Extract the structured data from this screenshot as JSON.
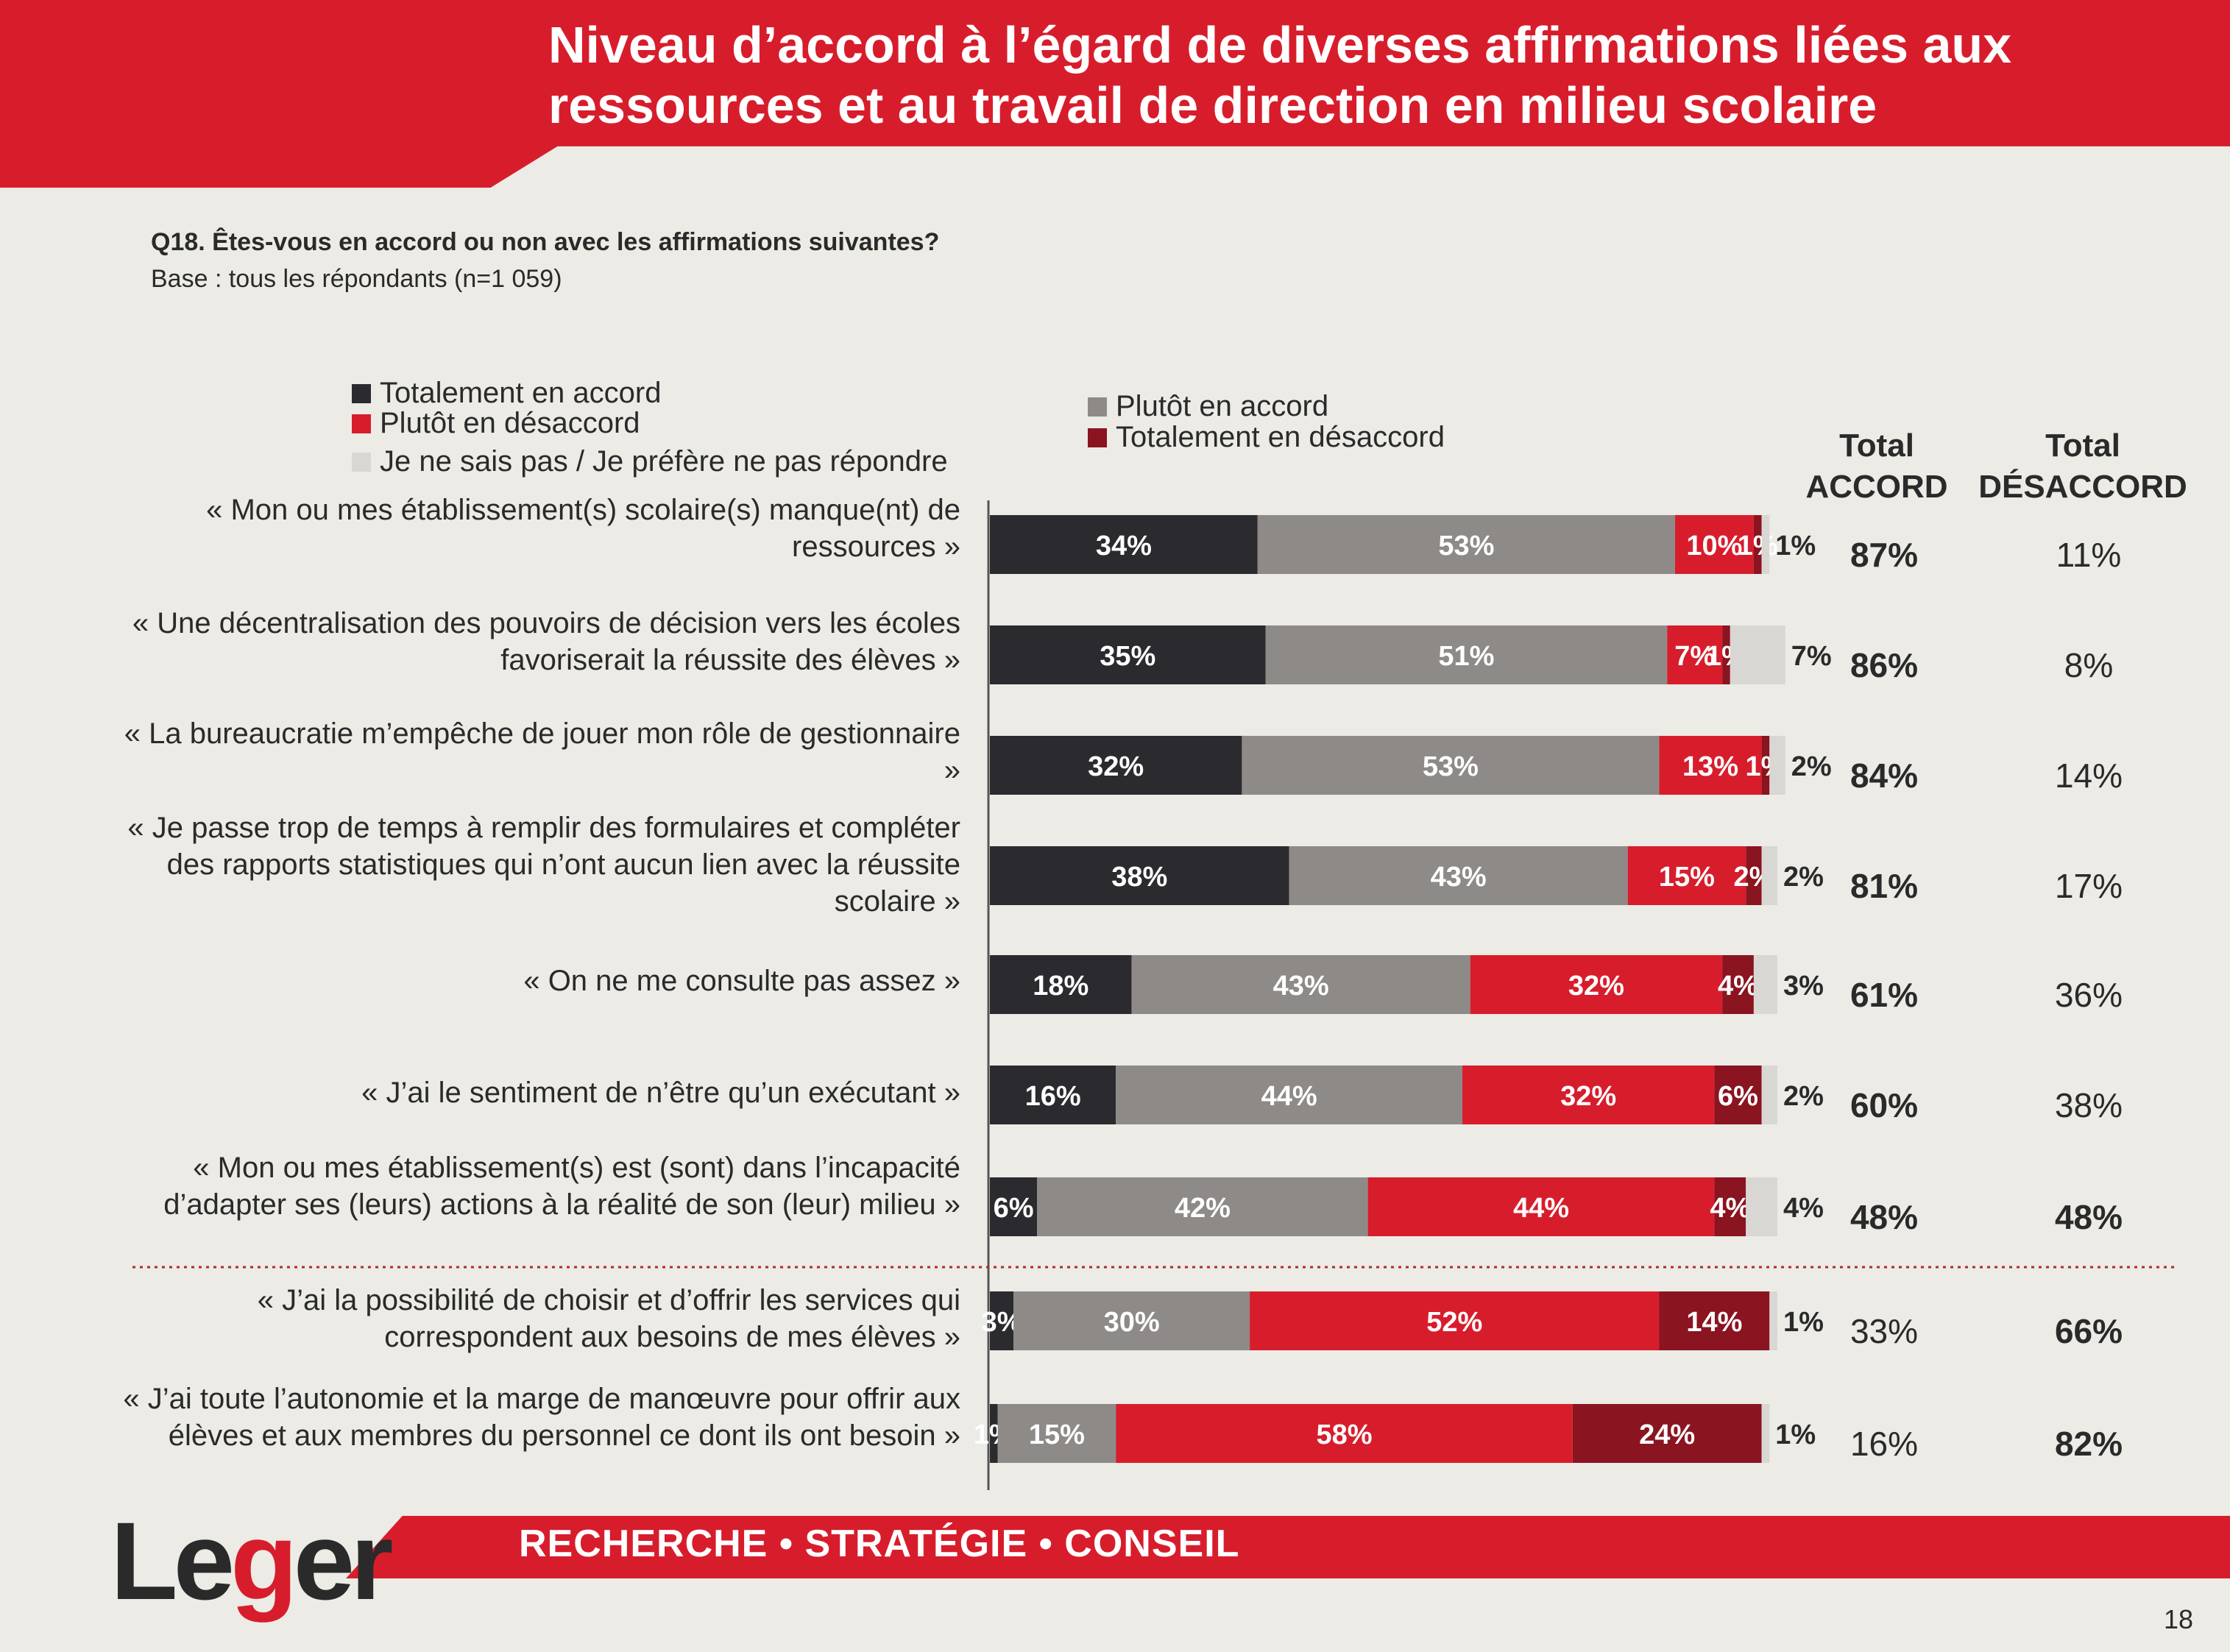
{
  "banner": {
    "title": "Niveau d’accord à l’égard de diverses affirmations liées aux ressources et au travail de direction en milieu scolaire"
  },
  "question": "Q18. Êtes-vous en accord ou non avec les affirmations suivantes?",
  "base": "Base : tous les répondants (n=1 059)",
  "legend": {
    "totally_agree": "Totalement en accord",
    "rather_disagree": "Plutôt en désaccord",
    "dont_know": "Je ne sais pas / Je préfère ne pas répondre",
    "rather_agree": "Plutôt en accord",
    "totally_disagree": "Totalement en désaccord"
  },
  "columns": {
    "total_agree": "Total ACCORD",
    "total_disagree": "Total DÉSACCORD"
  },
  "colors": {
    "totally_agree": "#2b2a2e",
    "rather_agree": "#8e8a88",
    "rather_disagree": "#d71d2c",
    "totally_disagree": "#8a1420",
    "dont_know": "#d9d7d3",
    "brand_red": "#d71d2c"
  },
  "chart_data": {
    "type": "bar",
    "orientation": "horizontal",
    "stacked": true,
    "unit": "%",
    "xlim": [
      0,
      100
    ],
    "series_order": [
      "Totalement en accord",
      "Plutôt en accord",
      "Plutôt en désaccord",
      "Totalement en désaccord",
      "Je ne sais pas / Je préfère ne pas répondre"
    ],
    "categories": [
      "« Mon ou mes établissement(s) scolaire(s) manque(nt) de ressources »",
      "« Une décentralisation des pouvoirs de décision vers les écoles favoriserait la réussite des élèves »",
      "« La bureaucratie m’empêche de jouer mon rôle de gestionnaire »",
      "« Je passe trop de temps à remplir des formulaires et compléter des rapports statistiques qui n’ont aucun lien avec la réussite scolaire »",
      "« On ne me consulte pas assez »",
      "« J’ai le sentiment de n’être qu’un exécutant »",
      "« Mon ou mes établissement(s) est (sont) dans l’incapacité d’adapter ses (leurs) actions à la réalité de son (leur) milieu »",
      "« J’ai la possibilité de choisir et d’offrir les services qui correspondent aux besoins de mes élèves »",
      "« J’ai toute l’autonomie et la marge de manœuvre pour offrir aux élèves et aux membres du personnel ce dont ils ont besoin »"
    ],
    "rows": [
      {
        "values": [
          34,
          53,
          10,
          1,
          1
        ],
        "labels": [
          "34%",
          "53%",
          "10%",
          "1%",
          "1%"
        ],
        "total_agree": "87%",
        "total_disagree": "11%"
      },
      {
        "values": [
          35,
          51,
          7,
          1,
          7
        ],
        "labels": [
          "35%",
          "51%",
          "7%",
          "1%",
          "7%"
        ],
        "total_agree": "86%",
        "total_disagree": "8%"
      },
      {
        "values": [
          32,
          53,
          13,
          1,
          2
        ],
        "labels": [
          "32%",
          "53%",
          "13%",
          "1%",
          "2%"
        ],
        "total_agree": "84%",
        "total_disagree": "14%"
      },
      {
        "values": [
          38,
          43,
          15,
          2,
          2
        ],
        "labels": [
          "38%",
          "43%",
          "15%",
          "2%",
          "2%"
        ],
        "total_agree": "81%",
        "total_disagree": "17%"
      },
      {
        "values": [
          18,
          43,
          32,
          4,
          3
        ],
        "labels": [
          "18%",
          "43%",
          "32%",
          "4%",
          "3%"
        ],
        "total_agree": "61%",
        "total_disagree": "36%"
      },
      {
        "values": [
          16,
          44,
          32,
          6,
          2
        ],
        "labels": [
          "16%",
          "44%",
          "32%",
          "6%",
          "2%"
        ],
        "total_agree": "60%",
        "total_disagree": "38%"
      },
      {
        "values": [
          6,
          42,
          44,
          4,
          4
        ],
        "labels": [
          "6%",
          "42%",
          "44%",
          "4%",
          "4%"
        ],
        "total_agree": "48%",
        "total_disagree": "48%"
      },
      {
        "values": [
          3,
          30,
          52,
          14,
          1
        ],
        "labels": [
          "3%",
          "30%",
          "52%",
          "14%",
          "1%"
        ],
        "total_agree": "33%",
        "total_disagree": "66%"
      },
      {
        "values": [
          1,
          15,
          58,
          24,
          1
        ],
        "labels": [
          "1%",
          "15%",
          "58%",
          "24%",
          "1%"
        ],
        "total_agree": "16%",
        "total_disagree": "82%"
      }
    ],
    "bold_column": [
      "agree",
      "agree",
      "agree",
      "agree",
      "agree",
      "agree",
      "both",
      "disagree",
      "disagree"
    ]
  },
  "footer": {
    "logo": "Leger",
    "tagline": "RECHERCHE • STRATÉGIE • CONSEIL",
    "page": "18"
  }
}
